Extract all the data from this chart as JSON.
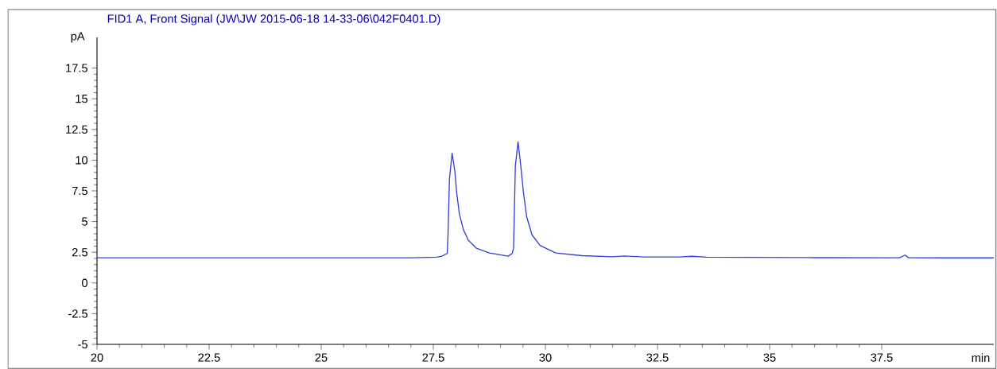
{
  "chart_data": {
    "type": "line",
    "title": "FID1 A, Front Signal (JW\\JW  2015-06-18  14-33-06\\042F0401.D)",
    "xlabel": "min",
    "ylabel": "pA",
    "xlim": [
      20,
      40
    ],
    "ylim": [
      -5,
      20
    ],
    "xticks": [
      20,
      22.5,
      25,
      27.5,
      30,
      32.5,
      35,
      37.5
    ],
    "yticks": [
      -5,
      -2.5,
      0,
      2.5,
      5,
      7.5,
      10,
      12.5,
      15,
      17.5
    ],
    "grid": false,
    "marker": "none",
    "line_style": "solid",
    "series": [
      {
        "color": "#3340d8",
        "x": [
          20,
          22,
          24,
          26,
          27,
          27.58,
          27.69,
          27.81,
          27.83,
          27.86,
          27.92,
          27.98,
          28.02,
          28.08,
          28.17,
          28.28,
          28.46,
          28.75,
          29.17,
          29.26,
          29.29,
          29.33,
          29.39,
          29.45,
          29.51,
          29.58,
          29.7,
          29.88,
          30.23,
          30.82,
          31.5,
          31.75,
          32.2,
          33.0,
          33.26,
          33.6,
          34.5,
          36,
          37.9,
          38.02,
          38.1,
          39,
          40
        ],
        "values": [
          2.05,
          2.05,
          2.05,
          2.05,
          2.05,
          2.1,
          2.18,
          2.4,
          4.13,
          8.46,
          10.56,
          9.11,
          7.38,
          5.65,
          4.35,
          3.48,
          2.83,
          2.44,
          2.18,
          2.4,
          2.83,
          9.55,
          11.49,
          9.55,
          7.38,
          5.43,
          3.92,
          3.05,
          2.44,
          2.22,
          2.13,
          2.2,
          2.12,
          2.12,
          2.17,
          2.1,
          2.08,
          2.06,
          2.05,
          2.27,
          2.05,
          2.04,
          2.04
        ]
      }
    ]
  }
}
